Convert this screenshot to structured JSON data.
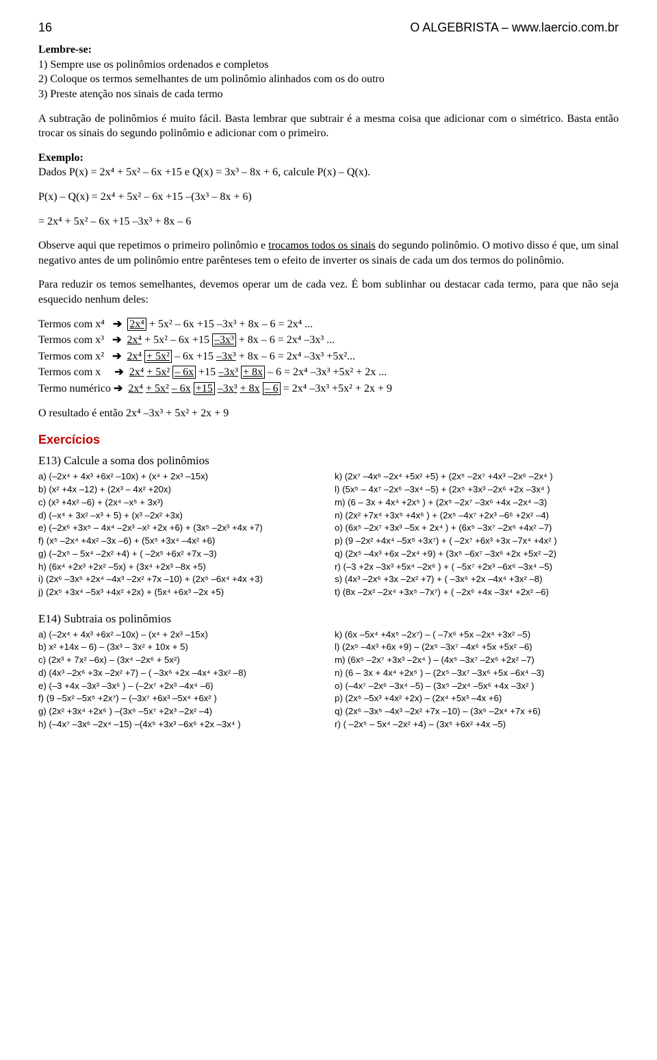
{
  "header": {
    "page_number": "16",
    "title": "O ALGEBRISTA – www.laercio.com.br"
  },
  "reminder": {
    "heading": "Lembre-se:",
    "items": [
      "1) Sempre use os polinômios ordenados e completos",
      "2) Coloque os termos semelhantes de um polinômio alinhados com os do outro",
      "3) Preste atenção nos sinais de cada termo"
    ]
  },
  "para1": "A subtração de polinômios é muito fácil. Basta lembrar que subtrair é a mesma coisa que adicionar com o simétrico. Basta então trocar os sinais do segundo polinômio e adicionar com o primeiro.",
  "example": {
    "heading": "Exemplo:",
    "given_prefix": "Dados P(x) = ",
    "p_of_x": "2x⁴ + 5x² – 6x +15",
    "q_prefix": " e Q(x) = ",
    "q_of_x": "3x³ – 8x + 6",
    "task": ", calcule P(x) – Q(x).",
    "line1": "P(x) – Q(x) = 2x⁴ + 5x² – 6x +15 –(3x³ – 8x + 6)",
    "line2": "= 2x⁴ + 5x² – 6x +15 –3x³ + 8x – 6"
  },
  "para2_a": "Observe aqui que repetimos o primeiro polinômio e ",
  "para2_u": "trocamos todos os sinais",
  "para2_b": " do segundo polinômio. O motivo disso é que, um sinal negativo antes de um polinômio entre parênteses tem o efeito de inverter os sinais de cada um dos termos do polinômio.",
  "para3": "Para reduzir os temos semelhantes, devemos operar um de cada vez. É bom sublinhar ou destacar cada termo, para que não seja esquecido nenhum deles:",
  "terms": {
    "t4_label": "Termos com x⁴",
    "t3_label": "Termos com x³",
    "t2_label": "Termos com x²",
    "t1_label": "Termos com x",
    "t0_label": "Termo numérico",
    "arrow": "➔"
  },
  "result_line": "O resultado é então 2x⁴ –3x³ + 5x² + 2x + 9",
  "exercises_title": "Exercícios",
  "e13": {
    "title": "E13) Calcule a soma dos polinômios",
    "left": [
      "a) (–2x⁴ + 4x³ +6x² –10x) + (x⁴ + 2x³ –15x)",
      "b) (x² +4x –12) + (2x³ – 4x² +20x)",
      "c) (x³ +4x² –6) + (2x⁴ –x⁵ + 3x³)",
      "d) (–x⁴ + 3x² –x³ + 5) + (x³ –2x² +3x)",
      "e) (–2x⁶ +3x⁵ – 4x⁴ –2x³ –x² +2x +6) + (3x⁵ –2x³ +4x +7)",
      "f) (x⁵ –2x⁴ +4x² –3x –6) + (5x⁵ +3x⁴ –4x² +6)",
      "g) (–2x⁵ – 5x⁴ –2x² +4) + ( –2x⁵ +6x² +7x –3)",
      "h) (6x⁴ +2x³ +2x² –5x) + (3x⁴ +2x³ –8x +5)",
      "i) (2x⁶ –3x⁵ +2x⁴ –4x³ –2x² +7x –10) + (2x⁵ –6x⁴ +4x +3)",
      "j) (2x⁵ +3x⁴ –5x³ +4x² +2x) + (5x⁴ +6x³ –2x +5)"
    ],
    "right": [
      "k) (2x⁷ –4x⁶ –2x⁴ +5x² +5) + (2x⁵ –2x⁷ +4x³ –2x⁶ –2x⁴ )",
      "l) (5x⁵ – 4x⁷ –2x⁶ –3x⁴ –5) + (2x⁵ +3x³ –2x⁶ +2x –3x⁴ )",
      "m) (6 – 3x + 4x⁴ +2x⁵ ) + (2x⁵ –2x⁷ –3x⁶ +4x –2x⁴ –3)",
      "n) (2x² +7x⁴ +3x⁵ +4x⁶ ) + (2x⁵ –4x⁷ +2x³ –6⁶ +2x² –4)",
      "o) (6x⁵ –2x⁷ +3x³ –5x + 2x⁴ ) + (6x⁵ –3x⁷ –2x⁶ +4x² –7)",
      "p) (9 –2x² +4x⁴ –5x⁵ +3x⁷) + ( –2x⁷ +6x³ +3x –7x⁴ +4x² )",
      "q) (2x⁵ –4x³ +6x –2x⁴ +9) + (3x⁵ –6x⁷ –3x⁶ +2x +5x² –2)",
      "r) (–3 +2x –3x³ +5x⁴ –2x⁶ ) + ( –5x⁷ +2x³ –6x⁶ –3x⁴ –5)",
      "s) (4x³ –2x⁶ +3x –2x² +7) + ( –3x⁶ +2x –4x⁴ +3x² –8)",
      "t) (8x –2x² –2x⁴ +3x⁵ –7x⁷) + ( –2x⁶ +4x –3x⁴ +2x² –6)"
    ]
  },
  "e14": {
    "title": "E14) Subtraia os polinômios",
    "left": [
      "a) (–2x⁴ + 4x³ +6x² –10x) – (x⁴ + 2x³ –15x)",
      "b) x² +14x – 6) – (3x³ – 3x² + 10x + 5)",
      "c) (2x³ + 7x² –6x) – (3x⁴ –2x⁶ + 5x²)",
      "d) (4x³ –2x⁶ +3x –2x² +7) – ( –3x⁶ +2x –4x⁴ +3x² –8)",
      "e) (–3 +4x –3x³ –3x⁶ ) – (–2x⁷ +2x³ –4x⁴ –6)",
      "f) (9 –5x² –5x⁵ +2x⁷) – (–3x⁷ +6x³ –5x⁴ +6x² )",
      "g) (2x² +3x⁴ +2x⁶ ) –(3x⁵ –5x⁷ +2x³ –2x² –4)",
      "h) (–4x⁷ –3x⁶ –2x⁴ –15) –(4x⁵ +3x³ –6x⁶ +2x –3x⁴ )"
    ],
    "right": [
      "k) (6x –5x⁴ +4x⁵ –2x⁷) – ( –7x⁶ +5x –2x⁴ +3x² –5)",
      "l) (2x⁵ –4x³ +6x +9) – (2x⁵ –3x⁷ –4x⁶ +5x +5x² –6)",
      "m) (6x⁵ –2x⁷ +3x³ –2x⁴ ) – (4x⁵ –3x⁷ –2x⁶ +2x² –7)",
      "n) (6 – 3x + 4x⁴ +2x⁵ ) – (2x⁵ –3x⁷ –3x⁶ +5x –6x⁴ –3)",
      "o) (–4x⁷ –2x⁶ –3x⁴ –5) – (3x⁵ –2x⁴ –5x⁶ +4x –3x² )",
      "p) (2x⁵ –5x³ +4x² +2x) – (2x⁴ +5x³ –4x +6)",
      "q) (2x⁶ –3x⁵ –4x³ –2x² +7x –10) – (3x⁵ –2x⁴ +7x +6)",
      "r) ( –2x⁵ – 5x⁴ –2x² +4) – (3x⁵ +6x² +4x –5)"
    ]
  }
}
